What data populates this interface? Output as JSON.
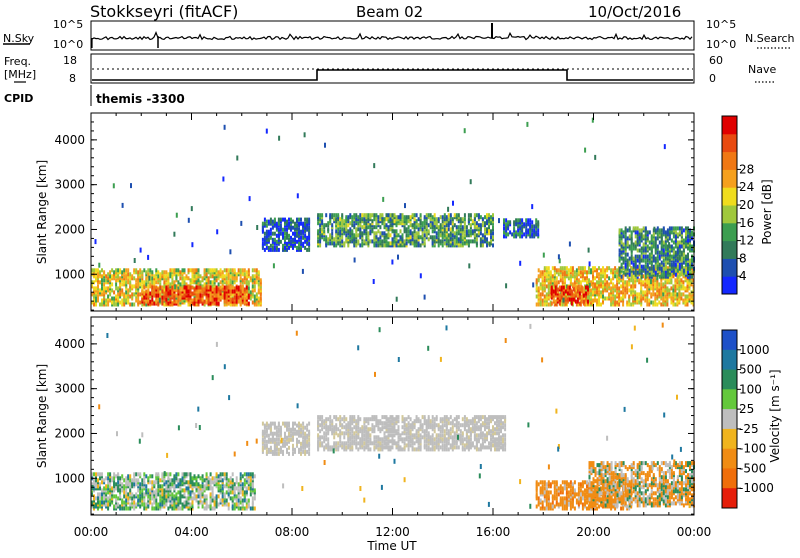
{
  "header": {
    "station": "Stokkseyri (fitACF)",
    "beam": "Beam 02",
    "date": "10/Oct/2016"
  },
  "noise_panel": {
    "left_label": "N.Sky",
    "right_label": "N.Search",
    "left_ticks": [
      "10^5",
      "10^0"
    ],
    "right_ticks": [
      "10^5",
      "10^0"
    ]
  },
  "freq_panel": {
    "left_label_1": "Freq.",
    "left_label_2": "[MHz]",
    "right_label": "Nave",
    "left_ticks": [
      "18",
      "8"
    ],
    "right_ticks": [
      "60",
      "0"
    ],
    "cpid_label": "CPID",
    "cpid_text": "themis -3300"
  },
  "chart_data": [
    {
      "type": "heatmap",
      "panel": "power",
      "ylabel": "Slant Range [km]",
      "xlabel": "",
      "x_ticks": [
        "00:00",
        "04:00",
        "08:00",
        "12:00",
        "16:00",
        "20:00",
        "00:00"
      ],
      "y_ticks": [
        1000,
        2000,
        3000,
        4000
      ],
      "xlim_hours": [
        0,
        24
      ],
      "ylim": [
        180,
        4600
      ],
      "colorbar_label": "Power [dB]",
      "colorbar_ticks": [
        4,
        8,
        12,
        16,
        20,
        24,
        28
      ],
      "colorbar_colors": [
        "#1428ff",
        "#1e4fb0",
        "#327a5a",
        "#3c9e50",
        "#a0c83c",
        "#f0dc1e",
        "#f5a01e",
        "#f07814",
        "#e84a10",
        "#e00000"
      ],
      "regions": [
        {
          "t0": 0.0,
          "t1": 6.8,
          "r0": 280,
          "r1": 1050,
          "level": 0.55
        },
        {
          "t0": 2.0,
          "t1": 6.3,
          "r0": 300,
          "r1": 700,
          "level": 0.85
        },
        {
          "t0": 6.8,
          "t1": 8.7,
          "r0": 1500,
          "r1": 2200,
          "level": 0.1
        },
        {
          "t0": 9.0,
          "t1": 16.0,
          "r0": 1600,
          "r1": 2300,
          "level": 0.3
        },
        {
          "t0": 16.4,
          "t1": 17.8,
          "r0": 1800,
          "r1": 2200,
          "level": 0.15
        },
        {
          "t0": 17.7,
          "t1": 24.0,
          "r0": 280,
          "r1": 1100,
          "level": 0.6
        },
        {
          "t0": 18.3,
          "t1": 19.8,
          "r0": 300,
          "r1": 700,
          "level": 0.9
        },
        {
          "t0": 21.0,
          "t1": 24.0,
          "r0": 900,
          "r1": 2000,
          "level": 0.25
        }
      ]
    },
    {
      "type": "heatmap",
      "panel": "velocity",
      "ylabel": "Slant Range [km]",
      "xlabel": "Time UT",
      "x_ticks": [
        "00:00",
        "04:00",
        "08:00",
        "12:00",
        "16:00",
        "20:00",
        "00:00"
      ],
      "y_ticks": [
        1000,
        2000,
        3000,
        4000
      ],
      "xlim_hours": [
        0,
        24
      ],
      "ylim": [
        180,
        4600
      ],
      "colorbar_label": "Velocity [m s⁻¹]",
      "colorbar_ticks": [
        "1000",
        "500",
        "100",
        "25",
        "-25",
        "-100",
        "-500",
        "-1000"
      ],
      "colorbar_colors": [
        "#1e50c8",
        "#1e78a0",
        "#2a8c5a",
        "#64c83c",
        "#bebebe",
        "#f0b41e",
        "#f08c14",
        "#f06e0a",
        "#e61e0a"
      ],
      "regions": [
        {
          "t0": 0.0,
          "t1": 6.5,
          "r0": 280,
          "r1": 1050,
          "cls": "mix_green"
        },
        {
          "t0": 6.8,
          "t1": 8.7,
          "r0": 1500,
          "r1": 2200,
          "cls": "grey"
        },
        {
          "t0": 9.0,
          "t1": 16.5,
          "r0": 1600,
          "r1": 2350,
          "cls": "grey"
        },
        {
          "t0": 17.7,
          "t1": 21.5,
          "r0": 280,
          "r1": 900,
          "cls": "orange"
        },
        {
          "t0": 19.8,
          "t1": 24.0,
          "r0": 350,
          "r1": 1300,
          "cls": "orange_grey"
        }
      ]
    }
  ]
}
